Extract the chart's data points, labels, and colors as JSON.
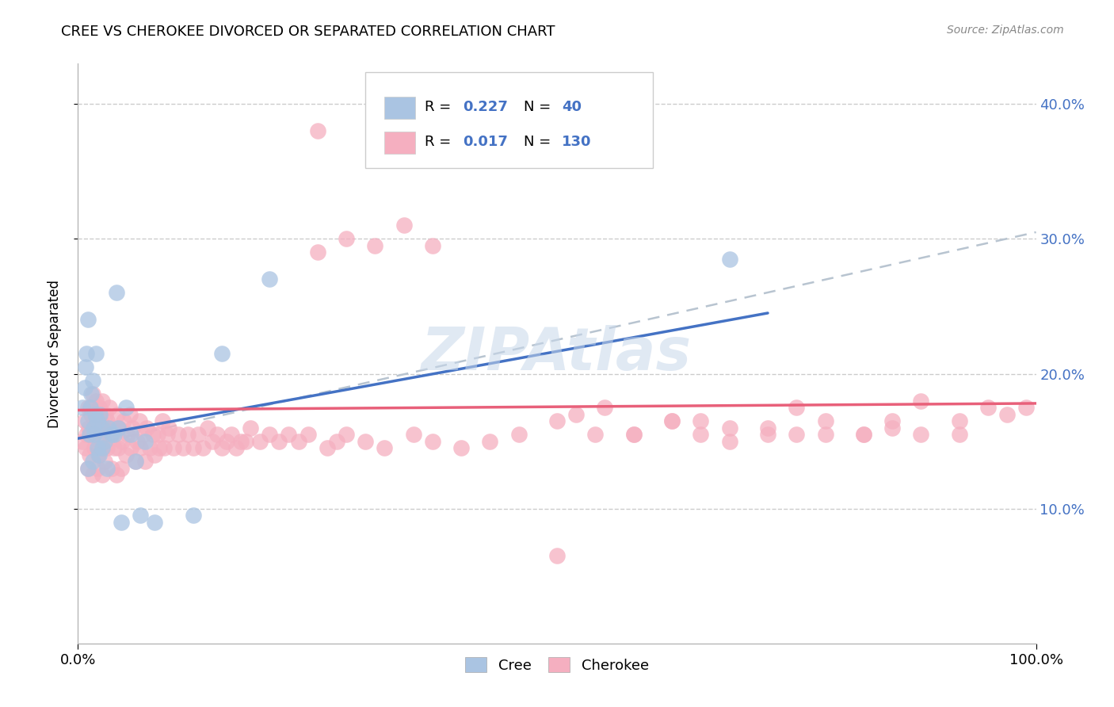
{
  "title": "CREE VS CHEROKEE DIVORCED OR SEPARATED CORRELATION CHART",
  "source": "Source: ZipAtlas.com",
  "ylabel": "Divorced or Separated",
  "yticks": [
    "10.0%",
    "20.0%",
    "30.0%",
    "40.0%"
  ],
  "ytick_vals": [
    0.1,
    0.2,
    0.3,
    0.4
  ],
  "xlim": [
    0.0,
    1.0
  ],
  "ylim": [
    0.0,
    0.43
  ],
  "cree_face_color": "#aac4e2",
  "cree_edge_color": "#aac4e2",
  "cherokee_face_color": "#f5afc0",
  "cherokee_edge_color": "#f5afc0",
  "cree_line_color": "#4472c4",
  "cherokee_line_color": "#e8607a",
  "dash_line_color": "#b8c4d0",
  "R_cree": 0.227,
  "N_cree": 40,
  "R_cherokee": 0.017,
  "N_cherokee": 130,
  "watermark": "ZIPAtlas",
  "cree_x": [
    0.005,
    0.007,
    0.008,
    0.009,
    0.01,
    0.01,
    0.01,
    0.012,
    0.013,
    0.014,
    0.015,
    0.015,
    0.016,
    0.017,
    0.018,
    0.019,
    0.02,
    0.02,
    0.022,
    0.023,
    0.025,
    0.025,
    0.028,
    0.03,
    0.032,
    0.035,
    0.038,
    0.04,
    0.042,
    0.045,
    0.05,
    0.055,
    0.06,
    0.065,
    0.07,
    0.08,
    0.12,
    0.15,
    0.2,
    0.68
  ],
  "cree_y": [
    0.175,
    0.19,
    0.205,
    0.215,
    0.13,
    0.165,
    0.24,
    0.155,
    0.175,
    0.185,
    0.135,
    0.195,
    0.16,
    0.155,
    0.17,
    0.215,
    0.145,
    0.165,
    0.14,
    0.17,
    0.145,
    0.16,
    0.15,
    0.13,
    0.16,
    0.155,
    0.155,
    0.26,
    0.16,
    0.09,
    0.175,
    0.155,
    0.135,
    0.095,
    0.15,
    0.09,
    0.095,
    0.215,
    0.27,
    0.285
  ],
  "cherokee_x": [
    0.005,
    0.007,
    0.008,
    0.009,
    0.01,
    0.01,
    0.011,
    0.012,
    0.013,
    0.014,
    0.015,
    0.015,
    0.016,
    0.017,
    0.018,
    0.019,
    0.02,
    0.02,
    0.021,
    0.022,
    0.023,
    0.024,
    0.025,
    0.025,
    0.026,
    0.027,
    0.028,
    0.029,
    0.03,
    0.03,
    0.032,
    0.033,
    0.035,
    0.036,
    0.038,
    0.04,
    0.041,
    0.042,
    0.043,
    0.045,
    0.046,
    0.048,
    0.05,
    0.052,
    0.054,
    0.055,
    0.057,
    0.06,
    0.062,
    0.064,
    0.065,
    0.068,
    0.07,
    0.072,
    0.075,
    0.078,
    0.08,
    0.083,
    0.085,
    0.088,
    0.09,
    0.093,
    0.095,
    0.1,
    0.105,
    0.11,
    0.115,
    0.12,
    0.125,
    0.13,
    0.135,
    0.14,
    0.145,
    0.15,
    0.155,
    0.16,
    0.165,
    0.17,
    0.175,
    0.18,
    0.19,
    0.2,
    0.21,
    0.22,
    0.23,
    0.24,
    0.25,
    0.26,
    0.27,
    0.28,
    0.3,
    0.32,
    0.35,
    0.37,
    0.4,
    0.43,
    0.46,
    0.5,
    0.54,
    0.58,
    0.62,
    0.65,
    0.68,
    0.72,
    0.75,
    0.78,
    0.82,
    0.85,
    0.88,
    0.92,
    0.55,
    0.58,
    0.62,
    0.65,
    0.68,
    0.72,
    0.75,
    0.78,
    0.82,
    0.85,
    0.88,
    0.92,
    0.95,
    0.97,
    0.99,
    0.25,
    0.28,
    0.31,
    0.34,
    0.37,
    0.5,
    0.52
  ],
  "cherokee_y": [
    0.15,
    0.165,
    0.145,
    0.155,
    0.13,
    0.175,
    0.16,
    0.14,
    0.155,
    0.17,
    0.125,
    0.185,
    0.155,
    0.145,
    0.165,
    0.18,
    0.13,
    0.16,
    0.14,
    0.175,
    0.15,
    0.165,
    0.125,
    0.18,
    0.145,
    0.16,
    0.135,
    0.17,
    0.145,
    0.165,
    0.155,
    0.175,
    0.13,
    0.16,
    0.145,
    0.125,
    0.17,
    0.145,
    0.16,
    0.13,
    0.15,
    0.165,
    0.14,
    0.155,
    0.17,
    0.145,
    0.16,
    0.135,
    0.15,
    0.165,
    0.145,
    0.155,
    0.135,
    0.16,
    0.145,
    0.155,
    0.14,
    0.155,
    0.145,
    0.165,
    0.145,
    0.155,
    0.16,
    0.145,
    0.155,
    0.145,
    0.155,
    0.145,
    0.155,
    0.145,
    0.16,
    0.15,
    0.155,
    0.145,
    0.15,
    0.155,
    0.145,
    0.15,
    0.15,
    0.16,
    0.15,
    0.155,
    0.15,
    0.155,
    0.15,
    0.155,
    0.38,
    0.145,
    0.15,
    0.155,
    0.15,
    0.145,
    0.155,
    0.15,
    0.145,
    0.15,
    0.155,
    0.165,
    0.155,
    0.155,
    0.165,
    0.155,
    0.15,
    0.155,
    0.155,
    0.155,
    0.155,
    0.165,
    0.155,
    0.155,
    0.175,
    0.155,
    0.165,
    0.165,
    0.16,
    0.16,
    0.175,
    0.165,
    0.155,
    0.16,
    0.18,
    0.165,
    0.175,
    0.17,
    0.175,
    0.29,
    0.3,
    0.295,
    0.31,
    0.295,
    0.065,
    0.17
  ]
}
